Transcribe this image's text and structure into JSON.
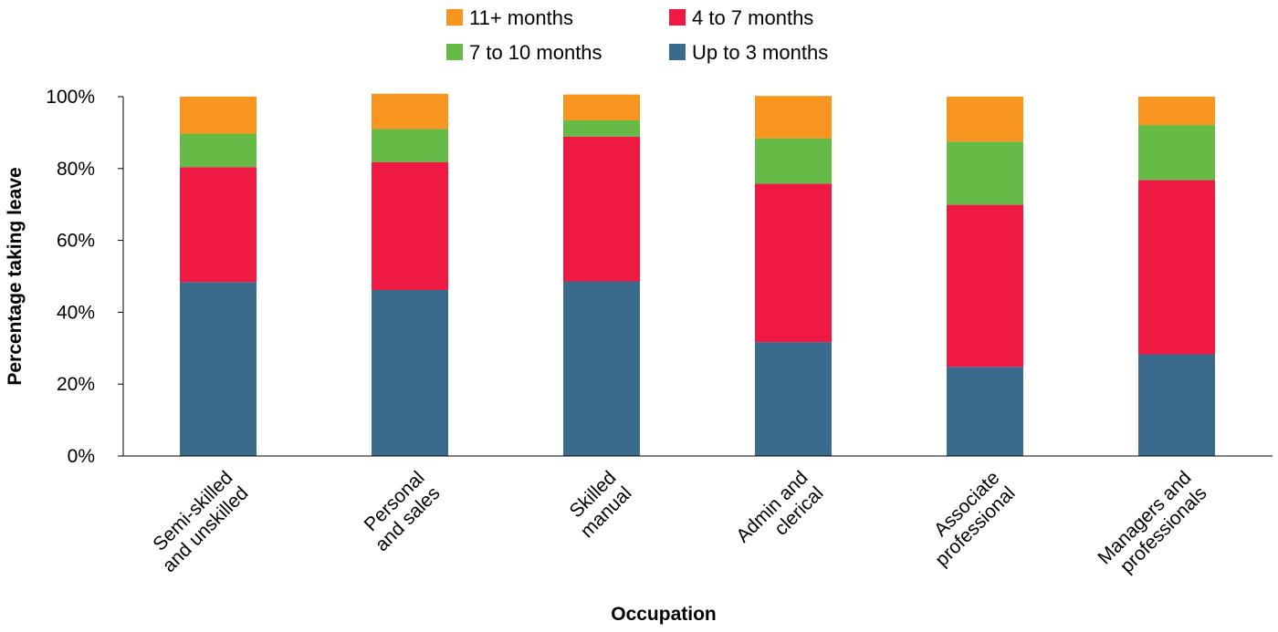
{
  "chart_data": {
    "type": "bar",
    "stacked": true,
    "title": "",
    "xlabel": "Occupation",
    "ylabel": "Percentage taking leave",
    "ylim": [
      0,
      100
    ],
    "y_ticks": [
      "0%",
      "20%",
      "40%",
      "60%",
      "80%",
      "100%"
    ],
    "grid": false,
    "legend_position": "top",
    "categories": [
      [
        "Semi-skilled",
        "and unskilled"
      ],
      [
        "Personal",
        "and sales"
      ],
      [
        "Skilled",
        "manual"
      ],
      [
        "Admin and",
        "clerical"
      ],
      [
        "Associate",
        "professional"
      ],
      [
        "Managers and",
        "professionals"
      ]
    ],
    "series": [
      {
        "name": "Up to 3 months",
        "color": "#3a6b8c",
        "values": [
          48.4,
          46.2,
          48.6,
          31.7,
          24.8,
          28.3
        ]
      },
      {
        "name": "4 to 7 months",
        "color": "#ee1a44",
        "values": [
          32.0,
          35.6,
          40.3,
          44.1,
          45.1,
          48.5
        ]
      },
      {
        "name": "7 to 10 months",
        "color": "#66bb47",
        "values": [
          9.3,
          9.2,
          4.5,
          12.6,
          17.6,
          15.3
        ]
      },
      {
        "name": "11+ months",
        "color": "#f7951e",
        "values": [
          10.3,
          9.8,
          7.2,
          11.8,
          12.5,
          7.9
        ]
      }
    ],
    "legend_order": [
      "11+ months",
      "4 to 7 months",
      "7 to 10 months",
      "Up to 3 months"
    ]
  }
}
